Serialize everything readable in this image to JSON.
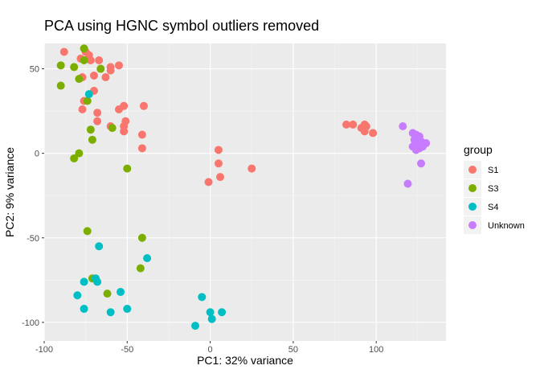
{
  "chart_data": {
    "type": "scatter",
    "title": "PCA using HGNC symbol outliers removed",
    "xlabel": "PC1: 32% variance",
    "ylabel": "PC2: 9% variance",
    "xlim": [
      -100,
      142
    ],
    "ylim": [
      -111,
      65
    ],
    "xticks": [
      "-100",
      "-50",
      "0",
      "50",
      "100"
    ],
    "xtick_values": [
      -100,
      -50,
      0,
      50,
      100
    ],
    "yticks": [
      "-100",
      "-50",
      "0",
      "50"
    ],
    "ytick_values": [
      -100,
      -50,
      0,
      50
    ],
    "grid": true,
    "legend": {
      "title": "group",
      "placement": "right"
    },
    "series": [
      {
        "name": "S1",
        "color": "#F8766D",
        "points": [
          [
            -88,
            60
          ],
          [
            -78,
            56
          ],
          [
            -75,
            60
          ],
          [
            -72,
            55
          ],
          [
            -67,
            55
          ],
          [
            -73,
            58
          ],
          [
            -60,
            49
          ],
          [
            -60,
            51
          ],
          [
            -55,
            52
          ],
          [
            -63,
            45
          ],
          [
            -77,
            45
          ],
          [
            -70,
            46
          ],
          [
            -70,
            37
          ],
          [
            -76,
            31
          ],
          [
            -77,
            26
          ],
          [
            -68,
            24
          ],
          [
            -68,
            19
          ],
          [
            -52,
            28
          ],
          [
            -55,
            26
          ],
          [
            -40,
            28
          ],
          [
            -60,
            16
          ],
          [
            -52,
            16
          ],
          [
            -52,
            13
          ],
          [
            -51,
            19
          ],
          [
            -41,
            11
          ],
          [
            -41,
            3
          ],
          [
            5,
            2
          ],
          [
            5,
            -6
          ],
          [
            6,
            -14
          ],
          [
            -1,
            -17
          ],
          [
            25,
            -9
          ],
          [
            82,
            17
          ],
          [
            86,
            17
          ],
          [
            91,
            15
          ],
          [
            93,
            17
          ],
          [
            94,
            16
          ],
          [
            93,
            13
          ],
          [
            98,
            12
          ]
        ]
      },
      {
        "name": "S3",
        "color": "#7CAE00",
        "points": [
          [
            -76,
            62
          ],
          [
            -90,
            52
          ],
          [
            -82,
            51
          ],
          [
            -76,
            55
          ],
          [
            -66,
            50
          ],
          [
            -90,
            40
          ],
          [
            -79,
            44
          ],
          [
            -74,
            31
          ],
          [
            -72,
            14
          ],
          [
            -71,
            8
          ],
          [
            -59,
            15
          ],
          [
            -79,
            0
          ],
          [
            -82,
            -3
          ],
          [
            -50,
            -9
          ],
          [
            -74,
            -46
          ],
          [
            -41,
            -50
          ],
          [
            -42,
            -68
          ],
          [
            -62,
            -83
          ],
          [
            -71,
            -74
          ]
        ]
      },
      {
        "name": "S4",
        "color": "#00BFC4",
        "points": [
          [
            -73,
            35
          ],
          [
            -67,
            -55
          ],
          [
            -38,
            -62
          ],
          [
            -69,
            -74
          ],
          [
            -68,
            -76
          ],
          [
            -76,
            -76
          ],
          [
            -80,
            -84
          ],
          [
            -54,
            -82
          ],
          [
            -76,
            -92
          ],
          [
            -60,
            -94
          ],
          [
            -50,
            -92
          ],
          [
            -5,
            -85
          ],
          [
            0,
            -94
          ],
          [
            7,
            -94
          ],
          [
            1,
            -98
          ],
          [
            -9,
            -102
          ]
        ]
      },
      {
        "name": "Unknown",
        "color": "#C77CFF",
        "points": [
          [
            116,
            16
          ],
          [
            122,
            12
          ],
          [
            124,
            11
          ],
          [
            126,
            10
          ],
          [
            123,
            8
          ],
          [
            127,
            7
          ],
          [
            130,
            6
          ],
          [
            125,
            5
          ],
          [
            122,
            4
          ],
          [
            128,
            4
          ],
          [
            126,
            3
          ],
          [
            124,
            2
          ],
          [
            127,
            -6
          ],
          [
            119,
            -18
          ]
        ]
      }
    ]
  }
}
